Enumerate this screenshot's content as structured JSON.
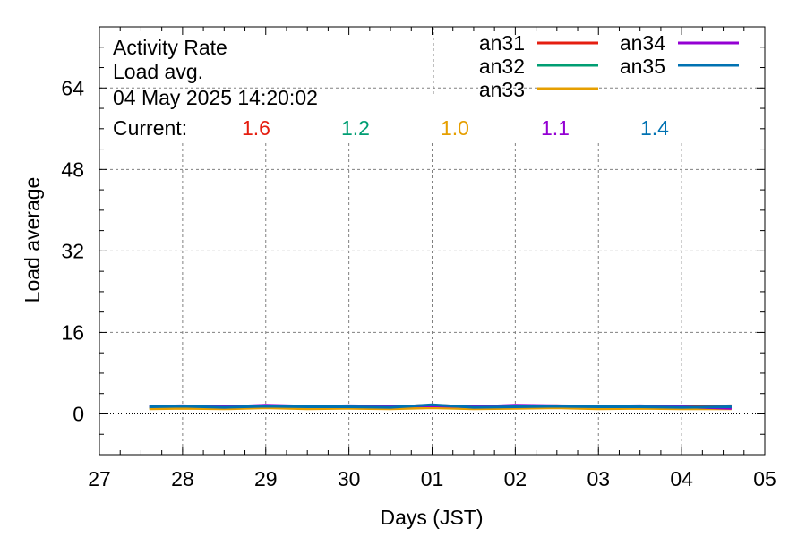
{
  "chart_data": {
    "type": "line",
    "title_lines": [
      "Activity Rate",
      "Load avg.",
      "04 May 2025 14:20:02"
    ],
    "xlabel": "Days (JST)",
    "ylabel": "Load average",
    "xlim": [
      27,
      35
    ],
    "ylim": [
      -8,
      76
    ],
    "x_ticks": [
      27,
      28,
      29,
      30,
      31,
      32,
      33,
      34,
      35
    ],
    "x_tick_labels": [
      "27",
      "28",
      "29",
      "30",
      "01",
      "02",
      "03",
      "04",
      "05"
    ],
    "y_ticks": [
      0,
      16,
      32,
      48,
      64
    ],
    "y_tick_labels": [
      "0",
      "16",
      "32",
      "48",
      "64"
    ],
    "grid": true,
    "legend_position": "top-right",
    "current_label": "Current:",
    "series": [
      {
        "name": "an31",
        "color": "#e51e10",
        "current": "1.6",
        "points": [
          [
            27.6,
            1.3
          ],
          [
            28.0,
            1.5
          ],
          [
            28.5,
            1.4
          ],
          [
            29.0,
            1.6
          ],
          [
            29.5,
            1.3
          ],
          [
            30.0,
            1.5
          ],
          [
            30.5,
            1.4
          ],
          [
            31.0,
            1.7
          ],
          [
            31.5,
            1.4
          ],
          [
            32.0,
            1.5
          ],
          [
            32.5,
            1.6
          ],
          [
            33.0,
            1.4
          ],
          [
            33.5,
            1.5
          ],
          [
            34.0,
            1.4
          ],
          [
            34.6,
            1.6
          ]
        ]
      },
      {
        "name": "an32",
        "color": "#009e73",
        "current": "1.2",
        "points": [
          [
            27.6,
            1.2
          ],
          [
            28.0,
            1.3
          ],
          [
            28.5,
            1.2
          ],
          [
            29.0,
            1.4
          ],
          [
            29.5,
            1.1
          ],
          [
            30.0,
            1.3
          ],
          [
            30.5,
            1.2
          ],
          [
            31.0,
            1.5
          ],
          [
            31.5,
            1.2
          ],
          [
            32.0,
            1.3
          ],
          [
            32.5,
            1.4
          ],
          [
            33.0,
            1.2
          ],
          [
            33.5,
            1.3
          ],
          [
            34.0,
            1.2
          ],
          [
            34.6,
            1.2
          ]
        ]
      },
      {
        "name": "an33",
        "color": "#e69f00",
        "current": "1.0",
        "points": [
          [
            27.6,
            1.0
          ],
          [
            28.0,
            1.1
          ],
          [
            28.5,
            1.0
          ],
          [
            29.0,
            1.2
          ],
          [
            29.5,
            1.0
          ],
          [
            30.0,
            1.1
          ],
          [
            30.5,
            1.0
          ],
          [
            31.0,
            1.2
          ],
          [
            31.5,
            1.0
          ],
          [
            32.0,
            1.1
          ],
          [
            32.5,
            1.2
          ],
          [
            33.0,
            1.0
          ],
          [
            33.5,
            1.1
          ],
          [
            34.0,
            1.0
          ],
          [
            34.6,
            1.0
          ]
        ]
      },
      {
        "name": "an34",
        "color": "#9400d3",
        "current": "1.1",
        "points": [
          [
            27.6,
            1.5
          ],
          [
            28.0,
            1.6
          ],
          [
            28.5,
            1.4
          ],
          [
            29.0,
            1.7
          ],
          [
            29.5,
            1.5
          ],
          [
            30.0,
            1.6
          ],
          [
            30.5,
            1.5
          ],
          [
            31.0,
            1.6
          ],
          [
            31.5,
            1.4
          ],
          [
            32.0,
            1.7
          ],
          [
            32.5,
            1.6
          ],
          [
            33.0,
            1.5
          ],
          [
            33.5,
            1.6
          ],
          [
            34.0,
            1.4
          ],
          [
            34.6,
            1.1
          ]
        ]
      },
      {
        "name": "an35",
        "color": "#0072b2",
        "current": "1.4",
        "points": [
          [
            27.6,
            1.4
          ],
          [
            28.0,
            1.5
          ],
          [
            28.5,
            1.3
          ],
          [
            29.0,
            1.5
          ],
          [
            29.5,
            1.4
          ],
          [
            30.0,
            1.4
          ],
          [
            30.5,
            1.3
          ],
          [
            31.0,
            1.8
          ],
          [
            31.5,
            1.3
          ],
          [
            32.0,
            1.4
          ],
          [
            32.5,
            1.5
          ],
          [
            33.0,
            1.4
          ],
          [
            33.5,
            1.4
          ],
          [
            34.0,
            1.3
          ],
          [
            34.6,
            1.4
          ]
        ]
      }
    ]
  }
}
